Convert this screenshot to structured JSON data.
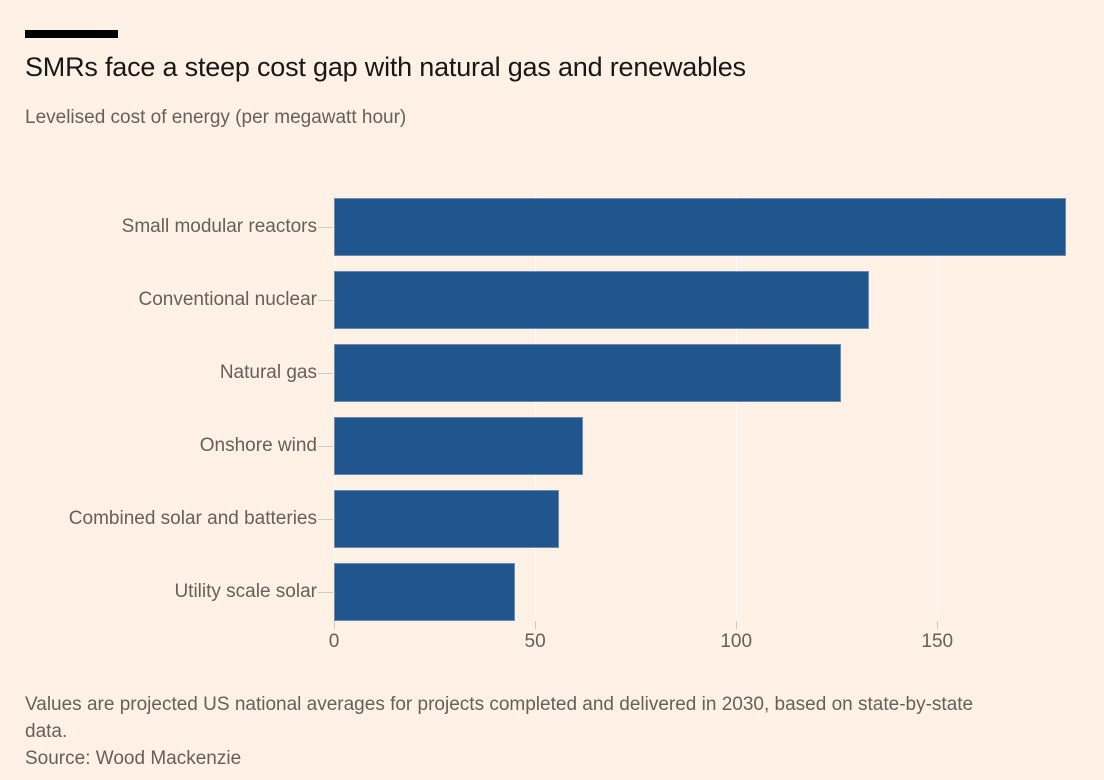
{
  "page": {
    "background_color": "#FFF1E5",
    "title_color": "#1A1817",
    "muted_text_color": "#66605B",
    "gridline_color": "rgba(255,255,255,0.75)",
    "tick_color": "#D9C9BA",
    "rule_color": "#000000"
  },
  "header": {
    "title": "SMRs face a steep cost gap with natural gas and renewables",
    "subtitle": "Levelised cost of energy (per megawatt hour)"
  },
  "chart_data": {
    "type": "bar",
    "orientation": "horizontal",
    "title": "SMRs face a steep cost gap with natural gas and renewables",
    "unit_label": "Levelised cost of energy (per megawatt hour)",
    "categories": [
      "Small modular reactors",
      "Conventional nuclear",
      "Natural gas",
      "Onshore wind",
      "Combined solar and batteries",
      "Utility scale solar"
    ],
    "values": [
      182,
      133,
      126,
      62,
      56,
      45
    ],
    "xlim": [
      0,
      182
    ],
    "xticks": [
      0,
      50,
      100,
      150
    ],
    "grid": true,
    "legend_position": "none",
    "bar_color": "#20568D",
    "bar_outline_color": "rgba(173,185,198,0.55)"
  },
  "footer": {
    "note": "Values are projected US national averages for projects completed and delivered in 2030, based on state-by-state data.",
    "source": "Source: Wood Mackenzie"
  }
}
